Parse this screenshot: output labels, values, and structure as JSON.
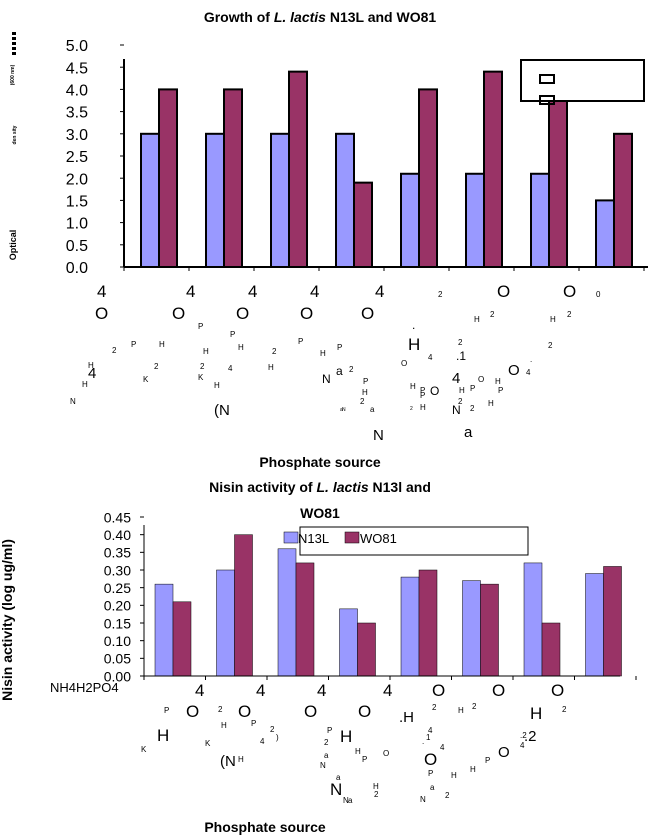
{
  "chart_data": [
    {
      "type": "bar",
      "title_parts": [
        "Growth of ",
        "L. lactis",
        " N13L and WO81"
      ],
      "ylabel_fragments": [
        "Optical",
        "den sity",
        "(600 nm)"
      ],
      "ylim": [
        0,
        5.0
      ],
      "y_ticks": [
        "0.0",
        "0.5",
        "1.0",
        "1.5",
        "2.0",
        "2.5",
        "3.0",
        "3.5",
        "4.0",
        "4.5",
        "5.0"
      ],
      "xlabel": "Phosphate source",
      "categories": [
        "NH4H2PO4",
        "KH2PO4",
        "K2HPO4",
        "(NH4)2HPO4",
        "NaH2PO4",
        "Na2HPO4",
        "NaH2PO4.H2O",
        "Na2HPO4.12H2O"
      ],
      "series": [
        {
          "values": [
            3.0,
            3.0,
            3.0,
            3.0,
            2.1,
            2.1,
            2.1,
            1.5
          ]
        },
        {
          "values": [
            4.0,
            4.0,
            4.4,
            1.9,
            4.0,
            4.4,
            4.0,
            3.0
          ]
        }
      ],
      "colors": [
        "#9999ff",
        "#993366"
      ],
      "legend_position": "top-right",
      "grid": false
    },
    {
      "type": "bar",
      "title_parts": [
        "Nisin activity of ",
        "L. lactis",
        " N13l and",
        "WO81"
      ],
      "ylabel": "Nisin activity (log ug/ml)",
      "ylim": [
        0,
        0.45
      ],
      "y_ticks": [
        "0.00",
        "0.05",
        "0.10",
        "0.15",
        "0.20",
        "0.25",
        "0.30",
        "0.35",
        "0.40",
        "0.45"
      ],
      "xlabel": "Phosphate source",
      "first_category_label": "NH4H2PO4",
      "categories": [
        "NH4H2PO4",
        "KH2PO4",
        "K2HPO4",
        "(NH4)2HPO4",
        "NaH2PO4",
        "Na2HPO4",
        "NaH2PO4.H2O",
        "Na2HPO4.12H2O"
      ],
      "series": [
        {
          "name": "N13L",
          "values": [
            0.26,
            0.3,
            0.36,
            0.19,
            0.28,
            0.27,
            0.32,
            0.29
          ]
        },
        {
          "name": "WO81",
          "values": [
            0.21,
            0.4,
            0.32,
            0.15,
            0.3,
            0.26,
            0.15,
            0.31
          ]
        }
      ],
      "colors": [
        "#9999ff",
        "#993366"
      ],
      "legend_position": "top",
      "grid": false
    }
  ]
}
